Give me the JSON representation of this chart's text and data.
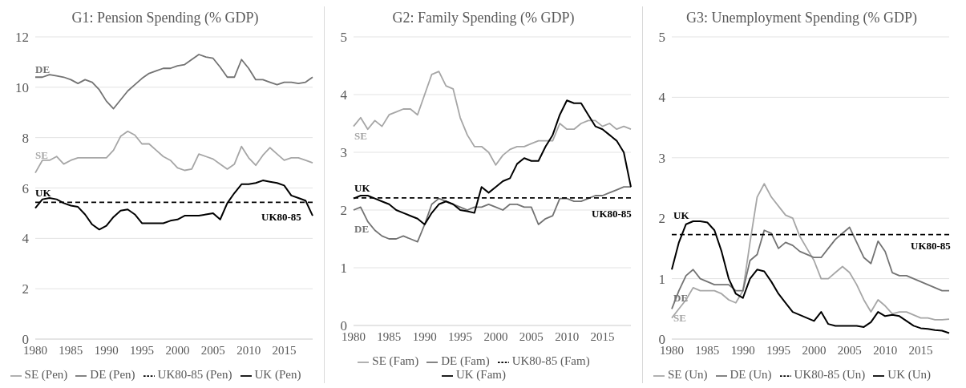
{
  "chart_data": [
    {
      "type": "line",
      "title": "G1: Pension Spending (% GDP)",
      "categories": [
        "1980",
        null,
        null,
        null,
        null,
        "1985",
        null,
        null,
        null,
        null,
        "1990",
        null,
        null,
        null,
        null,
        "1995",
        null,
        null,
        null,
        null,
        "2000",
        null,
        null,
        null,
        null,
        "2005",
        null,
        null,
        null,
        null,
        "2010",
        null,
        null,
        null,
        null,
        "2015",
        null,
        null,
        null,
        null
      ],
      "ylim": [
        0,
        12
      ],
      "yticks": [
        0,
        2,
        4,
        6,
        8,
        10,
        12
      ],
      "grid": "y",
      "legend": "bottom",
      "marker": "none",
      "series": [
        {
          "name": "SE (Pen)",
          "color": "#a6a6a6",
          "values": [
            6.6,
            7.1,
            7.1,
            7.25,
            6.95,
            7.1,
            7.2,
            7.2,
            7.2,
            7.2,
            7.2,
            7.5,
            8.05,
            8.25,
            8.1,
            7.75,
            7.75,
            7.5,
            7.25,
            7.1,
            6.8,
            6.7,
            6.75,
            7.35,
            7.25,
            7.15,
            6.95,
            6.75,
            6.95,
            7.65,
            7.2,
            6.9,
            7.3,
            7.6,
            7.35,
            7.1,
            7.2,
            7.2,
            7.1,
            7.0
          ]
        },
        {
          "name": "DE (Pen)",
          "color": "#737373",
          "values": [
            10.4,
            10.4,
            10.5,
            10.45,
            10.4,
            10.3,
            10.15,
            10.3,
            10.2,
            9.9,
            9.45,
            9.15,
            9.5,
            9.85,
            10.1,
            10.35,
            10.55,
            10.65,
            10.75,
            10.75,
            10.85,
            10.9,
            11.1,
            11.3,
            11.2,
            11.15,
            10.8,
            10.4,
            10.4,
            11.1,
            10.75,
            10.3,
            10.3,
            10.2,
            10.1,
            10.2,
            10.2,
            10.15,
            10.2,
            10.4
          ]
        },
        {
          "name": "UK80-85 (Pen)",
          "color": "#000000",
          "line_style": "dashed",
          "values": [
            5.43,
            5.43,
            5.43,
            5.43,
            5.43,
            5.43,
            5.43,
            5.43,
            5.43,
            5.43,
            5.43,
            5.43,
            5.43,
            5.43,
            5.43,
            5.43,
            5.43,
            5.43,
            5.43,
            5.43,
            5.43,
            5.43,
            5.43,
            5.43,
            5.43,
            5.43,
            5.43,
            5.43,
            5.43,
            5.43,
            5.43,
            5.43,
            5.43,
            5.43,
            5.43,
            5.43,
            5.43,
            5.43,
            5.43,
            5.43
          ]
        },
        {
          "name": "UK (Pen)",
          "color": "#000000",
          "values": [
            5.2,
            5.55,
            5.6,
            5.55,
            5.4,
            5.3,
            5.25,
            4.95,
            4.55,
            4.35,
            4.5,
            4.85,
            5.1,
            5.15,
            4.95,
            4.6,
            4.6,
            4.6,
            4.6,
            4.7,
            4.75,
            4.9,
            4.9,
            4.9,
            4.95,
            5.0,
            4.75,
            5.4,
            5.8,
            6.15,
            6.15,
            6.2,
            6.3,
            6.25,
            6.2,
            6.1,
            5.7,
            5.6,
            5.5,
            4.9
          ]
        }
      ],
      "annotations": [
        "DE",
        "SE",
        "UK",
        "UK80-85"
      ]
    },
    {
      "type": "line",
      "title": "G2: Family Spending (% GDP)",
      "categories": [
        "1980",
        null,
        null,
        null,
        null,
        "1985",
        null,
        null,
        null,
        null,
        "1990",
        null,
        null,
        null,
        null,
        "1995",
        null,
        null,
        null,
        null,
        "2000",
        null,
        null,
        null,
        null,
        "2005",
        null,
        null,
        null,
        null,
        "2010",
        null,
        null,
        null,
        null,
        "2015",
        null,
        null,
        null,
        null
      ],
      "ylim": [
        0,
        5
      ],
      "yticks": [
        0,
        1,
        2,
        3,
        4,
        5
      ],
      "grid": "y",
      "legend": "bottom",
      "marker": "none",
      "series": [
        {
          "name": "SE (Fam)",
          "color": "#a6a6a6",
          "values": [
            3.45,
            3.6,
            3.4,
            3.55,
            3.45,
            3.65,
            3.7,
            3.75,
            3.75,
            3.65,
            4.0,
            4.35,
            4.4,
            4.15,
            4.1,
            3.6,
            3.3,
            3.1,
            3.1,
            3.0,
            2.78,
            2.95,
            3.05,
            3.1,
            3.1,
            3.15,
            3.2,
            3.2,
            3.2,
            3.5,
            3.4,
            3.4,
            3.5,
            3.55,
            3.55,
            3.45,
            3.5,
            3.4,
            3.45,
            3.4
          ]
        },
        {
          "name": "DE (Fam)",
          "color": "#737373",
          "values": [
            2.0,
            2.05,
            1.8,
            1.65,
            1.55,
            1.5,
            1.5,
            1.55,
            1.5,
            1.45,
            1.75,
            2.1,
            2.2,
            2.15,
            2.1,
            2.05,
            2.0,
            2.05,
            2.05,
            2.1,
            2.05,
            2.0,
            2.1,
            2.1,
            2.05,
            2.05,
            1.75,
            1.85,
            1.9,
            2.2,
            2.2,
            2.15,
            2.15,
            2.2,
            2.25,
            2.25,
            2.3,
            2.35,
            2.4,
            2.4
          ]
        },
        {
          "name": "UK80-85 (Fam)",
          "color": "#000000",
          "line_style": "dashed",
          "values": [
            2.21,
            2.21,
            2.21,
            2.21,
            2.21,
            2.21,
            2.21,
            2.21,
            2.21,
            2.21,
            2.21,
            2.21,
            2.21,
            2.21,
            2.21,
            2.21,
            2.21,
            2.21,
            2.21,
            2.21,
            2.21,
            2.21,
            2.21,
            2.21,
            2.21,
            2.21,
            2.21,
            2.21,
            2.21,
            2.21,
            2.21,
            2.21,
            2.21,
            2.21,
            2.21,
            2.21,
            2.21,
            2.21,
            2.21,
            2.21
          ]
        },
        {
          "name": "UK (Fam)",
          "color": "#000000",
          "values": [
            2.2,
            2.25,
            2.25,
            2.2,
            2.15,
            2.1,
            2.0,
            1.95,
            1.9,
            1.85,
            1.75,
            1.95,
            2.1,
            2.15,
            2.1,
            2.0,
            1.98,
            1.95,
            2.4,
            2.3,
            2.4,
            2.5,
            2.55,
            2.8,
            2.9,
            2.85,
            2.85,
            3.1,
            3.3,
            3.65,
            3.9,
            3.85,
            3.85,
            3.65,
            3.45,
            3.4,
            3.3,
            3.2,
            3.0,
            2.4
          ]
        }
      ],
      "annotations": [
        "SE",
        "UK",
        "DE",
        "UK80-85"
      ]
    },
    {
      "type": "line",
      "title": "G3: Unemployment Spending (% GDP)",
      "categories": [
        "1980",
        null,
        null,
        null,
        null,
        "1985",
        null,
        null,
        null,
        null,
        "1990",
        null,
        null,
        null,
        null,
        "1995",
        null,
        null,
        null,
        null,
        "2000",
        null,
        null,
        null,
        null,
        "2005",
        null,
        null,
        null,
        null,
        "2010",
        null,
        null,
        null,
        null,
        "2015",
        null,
        null,
        null,
        null
      ],
      "ylim": [
        0,
        5
      ],
      "yticks": [
        0,
        1,
        2,
        3,
        4,
        5
      ],
      "grid": "y",
      "legend": "bottom",
      "marker": "none",
      "series": [
        {
          "name": "SE (Un)",
          "color": "#a6a6a6",
          "values": [
            0.35,
            0.5,
            0.65,
            0.85,
            0.8,
            0.8,
            0.8,
            0.75,
            0.65,
            0.6,
            0.8,
            1.6,
            2.35,
            2.57,
            2.35,
            2.2,
            2.05,
            2.0,
            1.7,
            1.5,
            1.3,
            1.0,
            1.0,
            1.1,
            1.2,
            1.1,
            0.9,
            0.65,
            0.45,
            0.65,
            0.55,
            0.42,
            0.45,
            0.45,
            0.4,
            0.35,
            0.35,
            0.32,
            0.32,
            0.33
          ]
        },
        {
          "name": "DE (Un)",
          "color": "#737373",
          "values": [
            0.5,
            0.8,
            1.05,
            1.15,
            1.0,
            0.95,
            0.9,
            0.9,
            0.9,
            0.8,
            0.8,
            1.3,
            1.4,
            1.8,
            1.75,
            1.5,
            1.6,
            1.55,
            1.45,
            1.4,
            1.35,
            1.35,
            1.5,
            1.65,
            1.75,
            1.85,
            1.6,
            1.35,
            1.25,
            1.62,
            1.45,
            1.1,
            1.05,
            1.05,
            1.0,
            0.95,
            0.9,
            0.85,
            0.8,
            0.8
          ]
        },
        {
          "name": "UK80-85 (Un)",
          "color": "#000000",
          "line_style": "dashed",
          "values": [
            1.73,
            1.73,
            1.73,
            1.73,
            1.73,
            1.73,
            1.73,
            1.73,
            1.73,
            1.73,
            1.73,
            1.73,
            1.73,
            1.73,
            1.73,
            1.73,
            1.73,
            1.73,
            1.73,
            1.73,
            1.73,
            1.73,
            1.73,
            1.73,
            1.73,
            1.73,
            1.73,
            1.73,
            1.73,
            1.73,
            1.73,
            1.73,
            1.73,
            1.73,
            1.73,
            1.73,
            1.73,
            1.73,
            1.73,
            1.73
          ]
        },
        {
          "name": "UK (Un)",
          "color": "#000000",
          "values": [
            1.15,
            1.6,
            1.9,
            1.95,
            1.95,
            1.93,
            1.8,
            1.45,
            1.0,
            0.75,
            0.68,
            1.0,
            1.15,
            1.12,
            0.95,
            0.75,
            0.6,
            0.45,
            0.4,
            0.35,
            0.3,
            0.45,
            0.25,
            0.22,
            0.22,
            0.22,
            0.22,
            0.2,
            0.28,
            0.45,
            0.38,
            0.4,
            0.38,
            0.3,
            0.22,
            0.18,
            0.17,
            0.15,
            0.14,
            0.1
          ]
        }
      ],
      "annotations": [
        "UK",
        "DE",
        "SE",
        "UK80-85"
      ]
    }
  ]
}
